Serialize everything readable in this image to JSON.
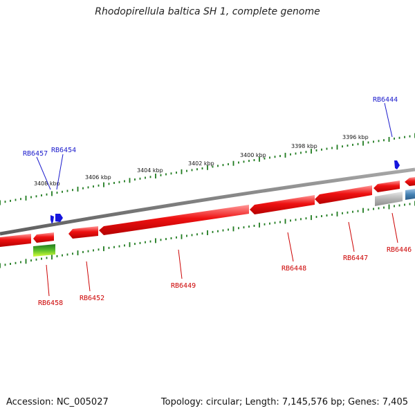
{
  "title": "Rhodopirellula baltica SH 1, complete genome",
  "footer": {
    "accession": "Accession: NC_005027",
    "topology": "Topology: circular; Length: 7,145,576 bp; Genes: 7,405"
  },
  "scale_labels": [
    "3408 kbp",
    "3406 kbp",
    "3404 kbp",
    "3402 kbp",
    "3400 kbp",
    "3398 kbp",
    "3396 kbp"
  ],
  "gene_labels": {
    "forward": [
      "RB6457",
      "RB6454",
      "RB6444"
    ],
    "reverse": [
      "RB6458",
      "RB6452",
      "RB6449",
      "RB6448",
      "RB6447",
      "RB6446"
    ]
  },
  "colors": {
    "forward_label": "#1a1acc",
    "reverse_label": "#cc0000",
    "gene_red": "#ee1111",
    "scale_green": "#1e7a1e",
    "backbone": "#808080",
    "forward_arrow": "#1515dd"
  }
}
